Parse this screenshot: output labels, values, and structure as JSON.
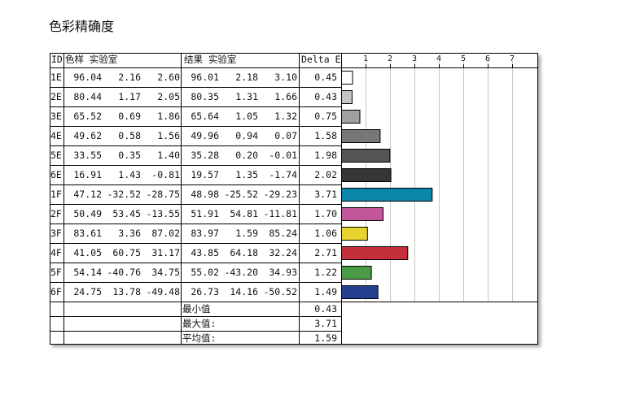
{
  "title": "色彩精确度",
  "headers": {
    "id": "ID",
    "sample": "色样 实验室",
    "result": "结果 实验室",
    "delta": "Delta E"
  },
  "axis_ticks": [
    "1",
    "2",
    "3",
    "4",
    "5",
    "6",
    "7"
  ],
  "rows": [
    {
      "id": "1E",
      "sample": [
        "96.04",
        "2.16",
        "2.60"
      ],
      "result": [
        "96.01",
        "2.18",
        "3.10"
      ],
      "delta": "0.45",
      "color": "#ffffff"
    },
    {
      "id": "2E",
      "sample": [
        "80.44",
        "1.17",
        "2.05"
      ],
      "result": [
        "80.35",
        "1.31",
        "1.66"
      ],
      "delta": "0.43",
      "color": "#c4c4c4"
    },
    {
      "id": "3E",
      "sample": [
        "65.52",
        "0.69",
        "1.86"
      ],
      "result": [
        "65.64",
        "1.05",
        "1.32"
      ],
      "delta": "0.75",
      "color": "#a0a0a0"
    },
    {
      "id": "4E",
      "sample": [
        "49.62",
        "0.58",
        "1.56"
      ],
      "result": [
        "49.96",
        "0.94",
        "0.07"
      ],
      "delta": "1.58",
      "color": "#777777"
    },
    {
      "id": "5E",
      "sample": [
        "33.55",
        "0.35",
        "1.40"
      ],
      "result": [
        "35.28",
        "0.20",
        "-0.01"
      ],
      "delta": "1.98",
      "color": "#555555"
    },
    {
      "id": "6E",
      "sample": [
        "16.91",
        "1.43",
        "-0.81"
      ],
      "result": [
        "19.57",
        "1.35",
        "-1.74"
      ],
      "delta": "2.02",
      "color": "#363636"
    },
    {
      "id": "1F",
      "sample": [
        "47.12",
        "-32.52",
        "-28.75"
      ],
      "result": [
        "48.98",
        "-25.52",
        "-29.23"
      ],
      "delta": "3.71",
      "color": "#0a86a8"
    },
    {
      "id": "2F",
      "sample": [
        "50.49",
        "53.45",
        "-13.55"
      ],
      "result": [
        "51.91",
        "54.81",
        "-11.81"
      ],
      "delta": "1.70",
      "color": "#c2569a"
    },
    {
      "id": "3F",
      "sample": [
        "83.61",
        "3.36",
        "87.02"
      ],
      "result": [
        "83.97",
        "1.59",
        "85.24"
      ],
      "delta": "1.06",
      "color": "#e8d22e"
    },
    {
      "id": "4F",
      "sample": [
        "41.05",
        "60.75",
        "31.17"
      ],
      "result": [
        "43.85",
        "64.18",
        "32.24"
      ],
      "delta": "2.71",
      "color": "#c4303a"
    },
    {
      "id": "5F",
      "sample": [
        "54.14",
        "-40.76",
        "34.75"
      ],
      "result": [
        "55.02",
        "-43.20",
        "34.93"
      ],
      "delta": "1.22",
      "color": "#4a9a48"
    },
    {
      "id": "6F",
      "sample": [
        "24.75",
        "13.78",
        "-49.48"
      ],
      "result": [
        "26.73",
        "14.16",
        "-50.52"
      ],
      "delta": "1.49",
      "color": "#233f8e"
    }
  ],
  "summary": [
    {
      "label": "最小值",
      "value": "0.43"
    },
    {
      "label": "最大值:",
      "value": "3.71"
    },
    {
      "label": "平均值:",
      "value": "1.59"
    }
  ],
  "chart_data": {
    "type": "bar",
    "orientation": "horizontal",
    "categories": [
      "1E",
      "2E",
      "3E",
      "4E",
      "5E",
      "6E",
      "1F",
      "2F",
      "3F",
      "4F",
      "5F",
      "6F"
    ],
    "values": [
      0.45,
      0.43,
      0.75,
      1.58,
      1.98,
      2.02,
      3.71,
      1.7,
      1.06,
      2.71,
      1.22,
      1.49
    ],
    "xlim": [
      0,
      8
    ],
    "xticks": [
      1,
      2,
      3,
      4,
      5,
      6,
      7
    ],
    "grid": true,
    "bar_colors": [
      "#ffffff",
      "#c4c4c4",
      "#a0a0a0",
      "#777777",
      "#555555",
      "#363636",
      "#0a86a8",
      "#c2569a",
      "#e8d22e",
      "#c4303a",
      "#4a9a48",
      "#233f8e"
    ]
  }
}
